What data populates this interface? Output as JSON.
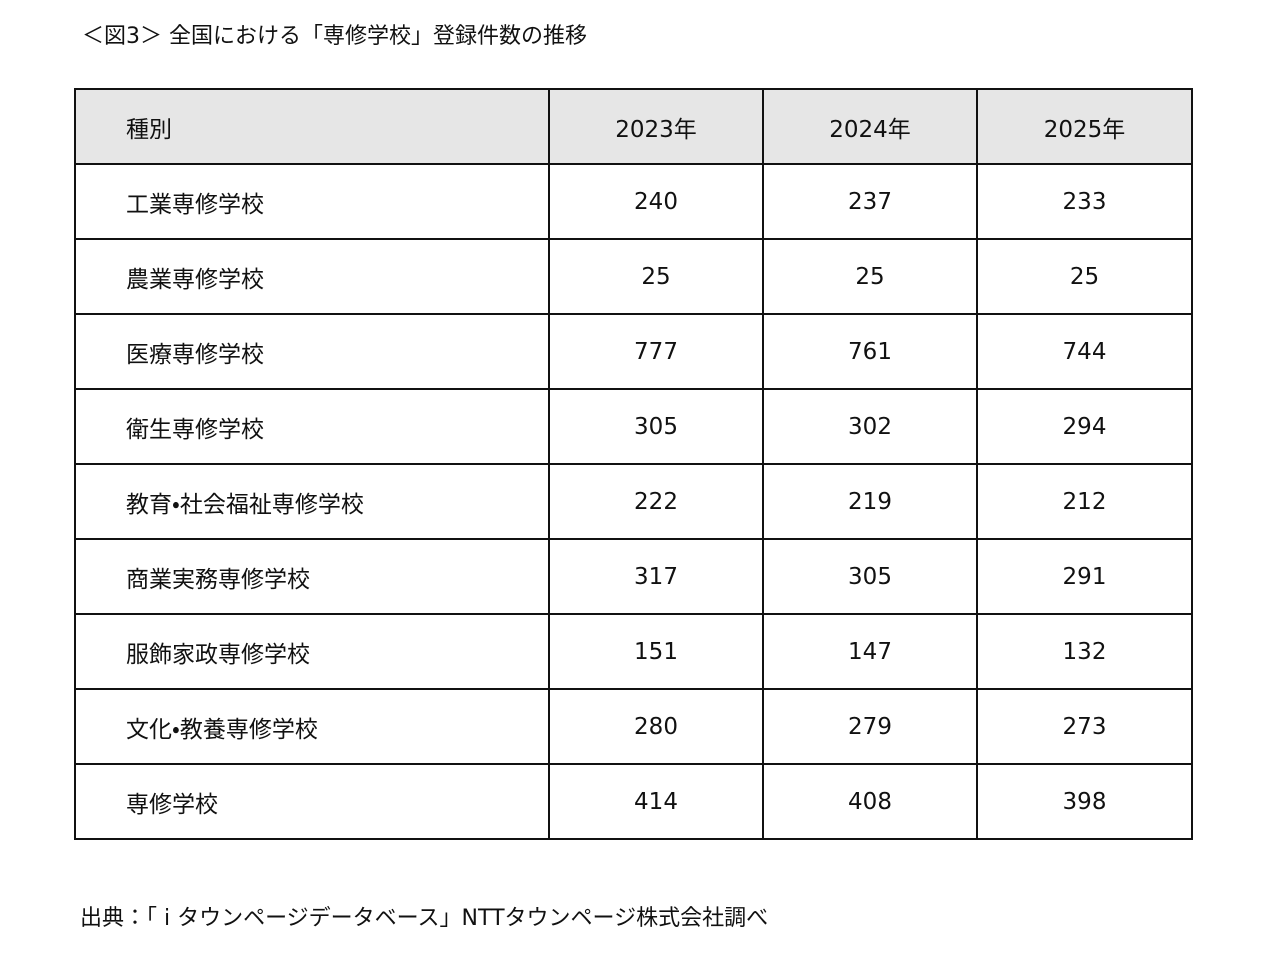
{
  "title": "＜図3＞ 全国における「専修学校」登録件数の推移",
  "table": {
    "header": [
      "種別",
      "2023年",
      "2024年",
      "2025年"
    ],
    "rows": [
      [
        "工業専修学校",
        240,
        237,
        233
      ],
      [
        "農業専修学校",
        25,
        25,
        25
      ],
      [
        "医療専修学校",
        777,
        761,
        744
      ],
      [
        "衛生専修学校",
        305,
        302,
        294
      ],
      [
        "教育・社会福祉専修学校",
        222,
        219,
        212
      ],
      [
        "商業実務専修学校",
        317,
        305,
        291
      ],
      [
        "服飾家政専修学校",
        151,
        147,
        132
      ],
      [
        "文化・教養専修学校",
        280,
        279,
        273
      ],
      [
        "専修学校",
        414,
        408,
        398
      ]
    ]
  },
  "source": "出典：「 i タウンページデータベース」NTTタウンページ株式会社調べ"
}
